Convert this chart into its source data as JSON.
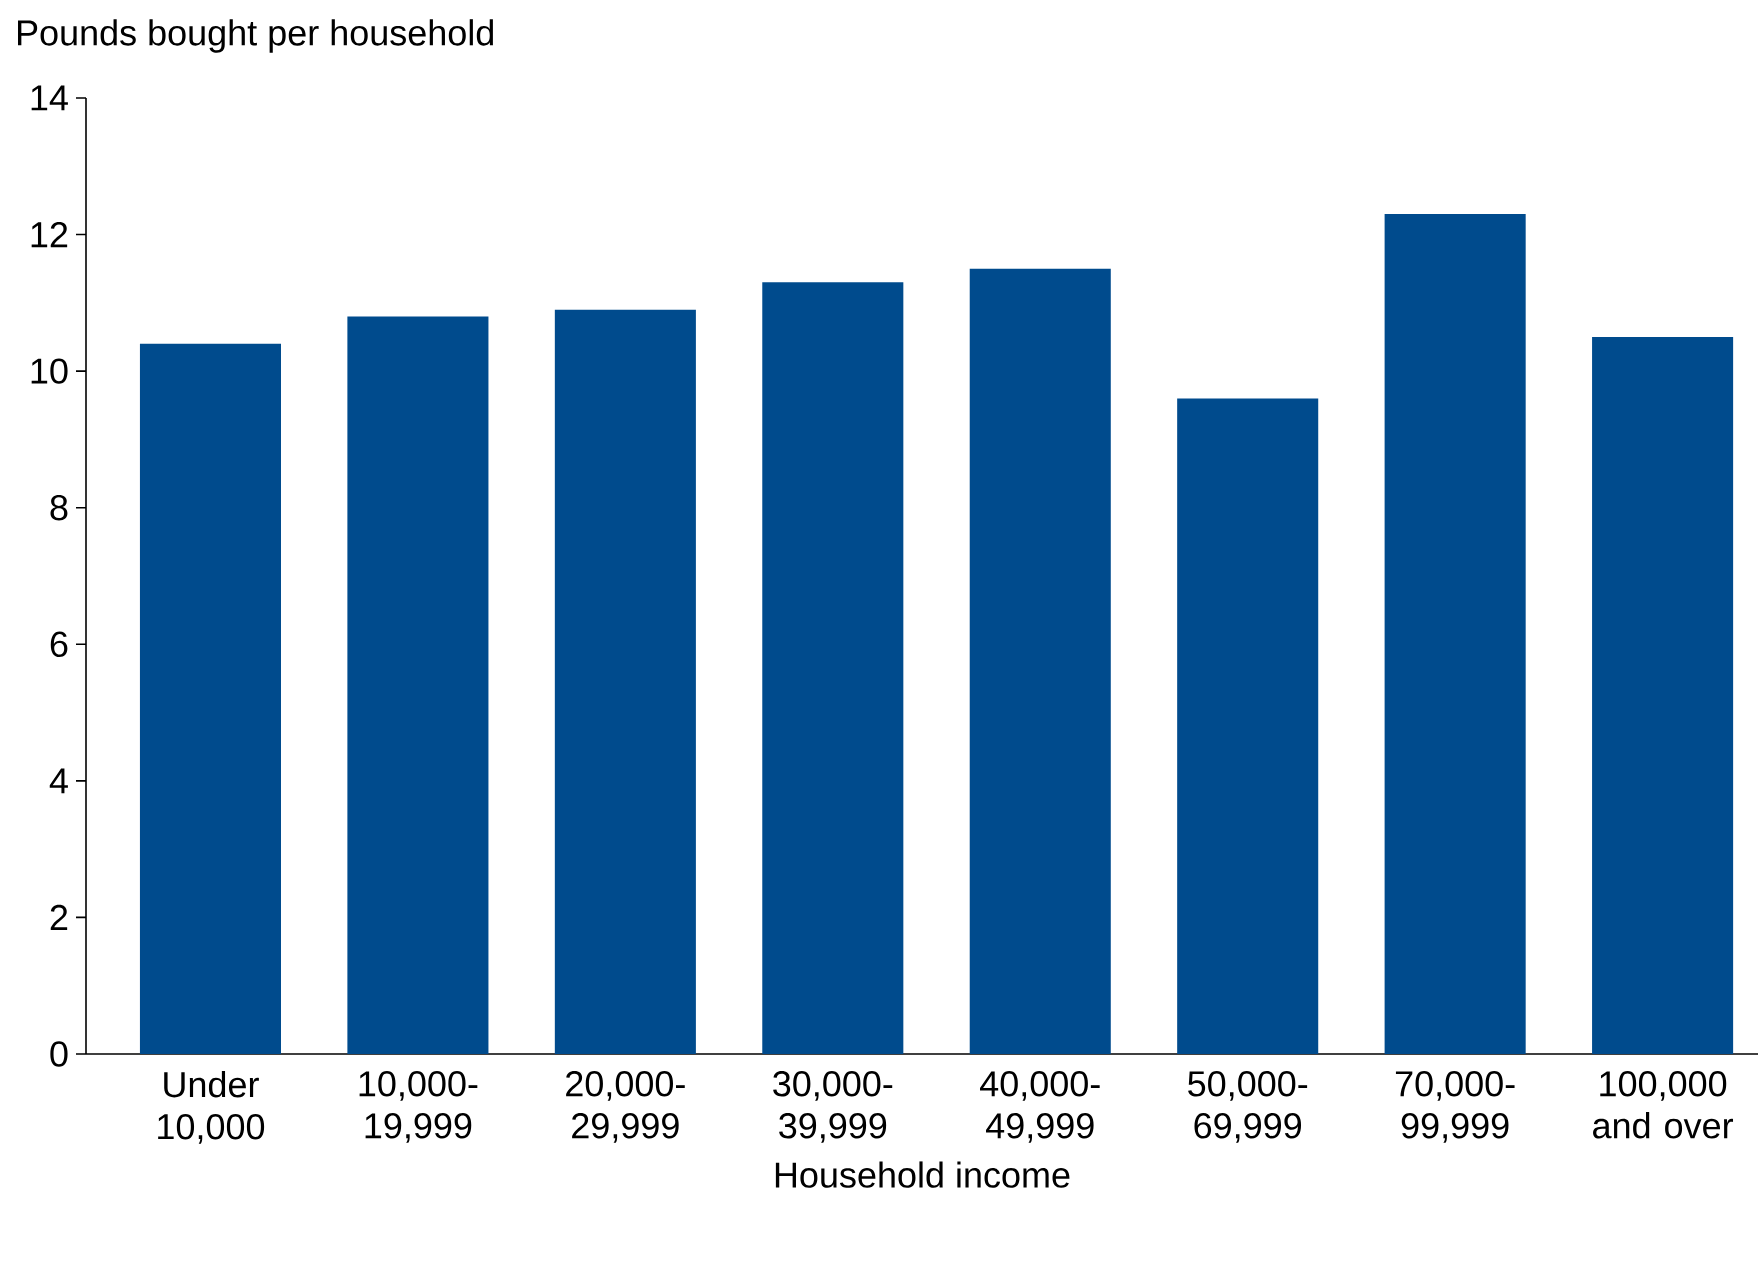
{
  "chart_data": {
    "type": "bar",
    "ylabel": "Pounds bought per household",
    "xlabel": "Household income",
    "categories": [
      "Under 10,000",
      "10,000- 19,999",
      "20,000- 29,999",
      "30,000- 39,999",
      "40,000- 49,999",
      "50,000- 69,999",
      "70,000- 99,999",
      "100,000 and over"
    ],
    "values": [
      10.4,
      10.8,
      10.9,
      11.3,
      11.5,
      9.6,
      12.3,
      10.5
    ],
    "color": "#004b8d",
    "ylim": [
      0,
      14
    ],
    "yticks": [
      0,
      2,
      4,
      6,
      8,
      10,
      12,
      14
    ],
    "grid": false
  }
}
